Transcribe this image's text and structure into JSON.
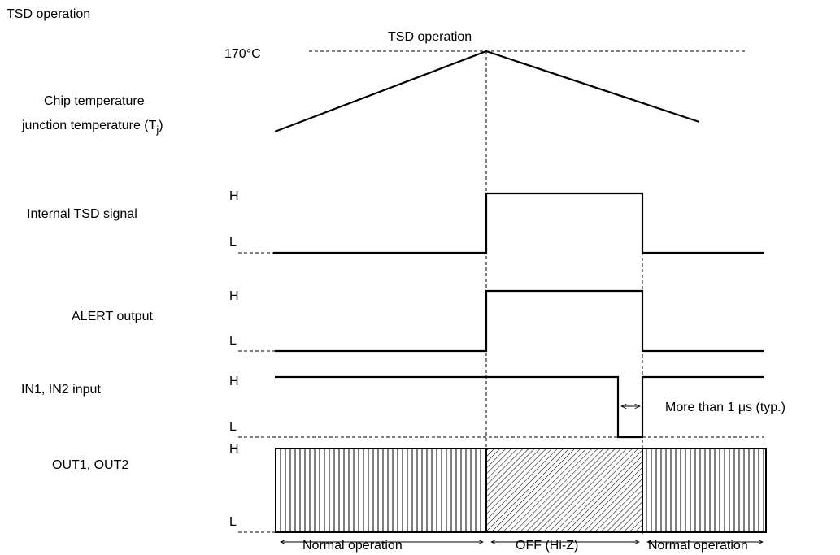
{
  "page_title": "TSD operation",
  "top_marker": {
    "label": "TSD operation",
    "temperature": "170°C"
  },
  "chip_temp": {
    "label_line1": "Chip temperature",
    "label_line2": "junction temperature (T",
    "subscript": "j",
    "label_close": ")"
  },
  "signals": {
    "internal_tsd": {
      "label": "Internal TSD signal",
      "high": "H",
      "low": "L"
    },
    "alert_output": {
      "label": "ALERT output",
      "high": "H",
      "low": "L"
    },
    "in_input": {
      "label": "IN1, IN2 input",
      "high": "H",
      "low": "L"
    },
    "out_output": {
      "label": "OUT1, OUT2",
      "high": "H",
      "low": "L"
    }
  },
  "pulse_note": {
    "prefix": "More than 1 ",
    "mu": "μ",
    "suffix": "s (typ.)"
  },
  "phases": {
    "left": "Normal operation",
    "middle": "OFF (Hi-Z)",
    "right": "Normal operation"
  }
}
